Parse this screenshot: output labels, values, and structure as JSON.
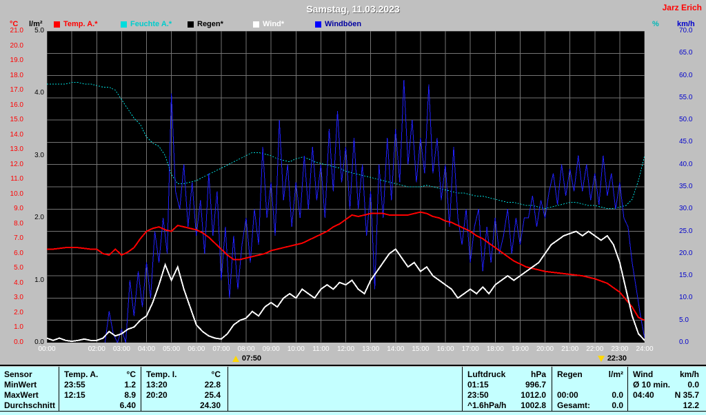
{
  "header": {
    "title": "Samstag, 11.03.2023",
    "station": "Jarz Erich"
  },
  "legend": {
    "items": [
      {
        "label": "Temp. A.*",
        "color": "#ff0000",
        "text_color": "#ff0000"
      },
      {
        "label": "Feuchte A.*",
        "color": "#00dddd",
        "text_color": "#00cccc"
      },
      {
        "label": "Regen*",
        "color": "#000000",
        "text_color": "#000000"
      },
      {
        "label": "Wind*",
        "color": "#ffffff",
        "text_color": "#ffffff"
      },
      {
        "label": "Windböen",
        "color": "#0000ff",
        "text_color": "#0000a0"
      }
    ]
  },
  "markers": [
    {
      "label": "07:50",
      "t": 7.83,
      "icon": "sun-up-icon"
    },
    {
      "label": "22:30",
      "t": 22.5,
      "icon": "sun-down-icon"
    }
  ],
  "chart_data": {
    "type": "line",
    "title": "Samstag, 11.03.2023",
    "x_range_hours": [
      0,
      24
    ],
    "grid": true,
    "axes": {
      "temp": {
        "unit": "°C",
        "color": "#ff0000",
        "min": 0,
        "max": 21,
        "ticks": [
          "21.0",
          "20.0",
          "19.0",
          "18.0",
          "17.0",
          "16.0",
          "15.0",
          "14.0",
          "13.0",
          "12.0",
          "11.0",
          "10.0",
          "9.0",
          "8.0",
          "7.0",
          "6.0",
          "5.0",
          "4.0",
          "3.0",
          "2.0",
          "1.0",
          "0.0"
        ]
      },
      "rain": {
        "unit": "l/m²",
        "color": "#000000",
        "min": 0,
        "max": 5,
        "ticks": [
          "5.0",
          "4.0",
          "3.0",
          "2.0",
          "1.0",
          "0.0"
        ]
      },
      "humidity": {
        "unit": "%",
        "color": "#00b8b8",
        "min": 0,
        "max": 100
      },
      "wind": {
        "unit": "km/h",
        "color": "#0000cc",
        "min": 0,
        "max": 70,
        "ticks": [
          "70.0",
          "65.0",
          "60.0",
          "55.0",
          "50.0",
          "45.0",
          "40.0",
          "35.0",
          "30.0",
          "25.0",
          "20.0",
          "15.0",
          "10.0",
          "5.0",
          "0.0"
        ]
      },
      "x_ticks": [
        "00:00",
        "02:00",
        "03:00",
        "04:00",
        "05:00",
        "06:00",
        "07:00",
        "08:00",
        "09:00",
        "10:00",
        "11:00",
        "12:00",
        "13:00",
        "14:00",
        "15:00",
        "16:00",
        "17:00",
        "18:00",
        "19:00",
        "20:00",
        "21:00",
        "22:00",
        "23:00",
        "24:00"
      ]
    },
    "series": [
      {
        "name": "Feuchte A.",
        "unit": "%",
        "color": "#00dddd",
        "axis_max": 100,
        "width": 1,
        "dash": "2 2",
        "t_start": 0,
        "dt_h": 0.25,
        "values": [
          83,
          83,
          83,
          83,
          83.5,
          83.5,
          83,
          83,
          82.5,
          82,
          82,
          81,
          78,
          75,
          72,
          70,
          66,
          64,
          63,
          60,
          54,
          51,
          51,
          51.5,
          52,
          53,
          54,
          55,
          56,
          57,
          58,
          59,
          60,
          61,
          61,
          60.5,
          60,
          59,
          58.5,
          58,
          59,
          59.5,
          59,
          58,
          57.5,
          57,
          56.5,
          56,
          55,
          54.5,
          54,
          53.5,
          53,
          52.5,
          52,
          51.5,
          51,
          50.5,
          50,
          50,
          50,
          50.5,
          50,
          49.5,
          49,
          48.5,
          48,
          48,
          47.5,
          47,
          47,
          46.5,
          46,
          45.5,
          45,
          45,
          44.5,
          44,
          44,
          43.5,
          43,
          43.5,
          44,
          44.5,
          45,
          45,
          44.5,
          44,
          44,
          43.5,
          43,
          43,
          43.5,
          44,
          46,
          52,
          60
        ]
      },
      {
        "name": "Regen",
        "unit": "l/m²",
        "color": "#000000",
        "axis_max": 5,
        "width": 1,
        "t_start": 0,
        "dt_h": 24,
        "values": [
          0,
          0
        ]
      },
      {
        "name": "Windböen",
        "unit": "km/h",
        "color": "#2020ff",
        "axis_max": 70,
        "width": 1,
        "t_start": 2.3333,
        "dt_h": 0.166667,
        "values": [
          0,
          7,
          2,
          0,
          3,
          0,
          14,
          6,
          16,
          8,
          18,
          10,
          25,
          18,
          28,
          20,
          56,
          34,
          30,
          40,
          26,
          36,
          24,
          32,
          20,
          38,
          24,
          34,
          14,
          26,
          10,
          24,
          12,
          22,
          28,
          18,
          30,
          22,
          44,
          28,
          36,
          24,
          50,
          32,
          40,
          26,
          36,
          28,
          42,
          30,
          44,
          32,
          40,
          28,
          48,
          34,
          52,
          36,
          44,
          30,
          46,
          30,
          40,
          24,
          34,
          12,
          40,
          28,
          46,
          32,
          48,
          36,
          59,
          40,
          50,
          36,
          46,
          38,
          58,
          38,
          46,
          32,
          40,
          26,
          44,
          28,
          22,
          30,
          18,
          26,
          30,
          16,
          26,
          18,
          28,
          20,
          24,
          30,
          20,
          28,
          22,
          28,
          28,
          33,
          26,
          32,
          28,
          34,
          38,
          31,
          40,
          33,
          39,
          34,
          42,
          34,
          40,
          32,
          38,
          31,
          42,
          33,
          38,
          30,
          36,
          28,
          26,
          18,
          12,
          6,
          1
        ]
      },
      {
        "name": "Temp. A.",
        "unit": "°C",
        "color": "#ff0000",
        "axis_max": 21,
        "width": 2,
        "t_start": 0,
        "dt_h": 0.25,
        "values": [
          6.3,
          6.3,
          6.35,
          6.4,
          6.4,
          6.4,
          6.35,
          6.3,
          6.3,
          6.0,
          5.9,
          6.3,
          5.9,
          6.1,
          6.4,
          7.0,
          7.5,
          7.7,
          7.8,
          7.6,
          7.5,
          7.9,
          7.8,
          7.7,
          7.6,
          7.4,
          7.1,
          6.7,
          6.3,
          5.9,
          5.6,
          5.6,
          5.7,
          5.8,
          5.9,
          6.0,
          6.2,
          6.3,
          6.4,
          6.5,
          6.6,
          6.7,
          6.9,
          7.1,
          7.3,
          7.5,
          7.8,
          8.0,
          8.3,
          8.6,
          8.5,
          8.6,
          8.7,
          8.7,
          8.7,
          8.6,
          8.6,
          8.6,
          8.6,
          8.7,
          8.8,
          8.7,
          8.5,
          8.4,
          8.2,
          8.1,
          7.9,
          7.7,
          7.5,
          7.2,
          7.0,
          6.7,
          6.4,
          6.1,
          5.8,
          5.5,
          5.3,
          5.1,
          5.0,
          4.9,
          4.8,
          4.75,
          4.7,
          4.65,
          4.6,
          4.55,
          4.5,
          4.4,
          4.3,
          4.15,
          4.0,
          3.7,
          3.4,
          2.9,
          2.4,
          1.7,
          1.5
        ]
      },
      {
        "name": "Wind",
        "unit": "km/h",
        "color": "#ffffff",
        "axis_max": 70,
        "width": 2,
        "t_start": 0,
        "dt_h": 0.25,
        "values": [
          1,
          0.5,
          1,
          0.5,
          0.3,
          0.5,
          0.8,
          0.5,
          0.5,
          1,
          2.5,
          1.5,
          2,
          3,
          3.5,
          5,
          6,
          9,
          13,
          17.5,
          14,
          17,
          12,
          8,
          4,
          2.5,
          1.5,
          1,
          0.8,
          2,
          4,
          5,
          5.5,
          7,
          6,
          8,
          9,
          8,
          10,
          11,
          10,
          12,
          11,
          10,
          12,
          13,
          12,
          13.5,
          13,
          14,
          12,
          11,
          14,
          16,
          18,
          20,
          21,
          19,
          17,
          18,
          16,
          17,
          15,
          14,
          13,
          12,
          10,
          11,
          12,
          11,
          12.5,
          11,
          13,
          14,
          15,
          14,
          15,
          16,
          17,
          18,
          20,
          22,
          23,
          24,
          24.5,
          25,
          24,
          25,
          24,
          23,
          24,
          22,
          18,
          12,
          6,
          2,
          0.5
        ]
      }
    ]
  },
  "table": {
    "sensor": {
      "header": "Sensor",
      "rows": [
        "MinWert",
        "MaxWert",
        "Durchschnitt"
      ]
    },
    "groups": [
      {
        "header": "Temp. A.",
        "unit": "°C",
        "rows": [
          [
            "23:55",
            "1.2"
          ],
          [
            "12:15",
            "8.9"
          ],
          [
            "",
            "6.40"
          ]
        ]
      },
      {
        "header": "Temp. I.",
        "unit": "°C",
        "rows": [
          [
            "13:20",
            "22.8"
          ],
          [
            "20:20",
            "25.4"
          ],
          [
            "",
            "24.30"
          ]
        ]
      },
      {
        "header": "Luftdruck",
        "unit": "hPa",
        "rows": [
          [
            "01:15",
            "996.7"
          ],
          [
            "23:50",
            "1012.0"
          ],
          [
            "^1.6hPa/h",
            "1002.8"
          ]
        ]
      },
      {
        "header": "Regen",
        "unit": "l/m²",
        "rows": [
          [
            "",
            ""
          ],
          [
            "00:00",
            "0.0"
          ],
          [
            "Gesamt:",
            "0.0"
          ]
        ]
      },
      {
        "header": "Wind",
        "unit": "km/h",
        "rows": [
          [
            "Ø 10 min.",
            "0.0"
          ],
          [
            "04:40",
            "N 35.7"
          ],
          [
            "",
            "12.2"
          ]
        ]
      }
    ]
  }
}
